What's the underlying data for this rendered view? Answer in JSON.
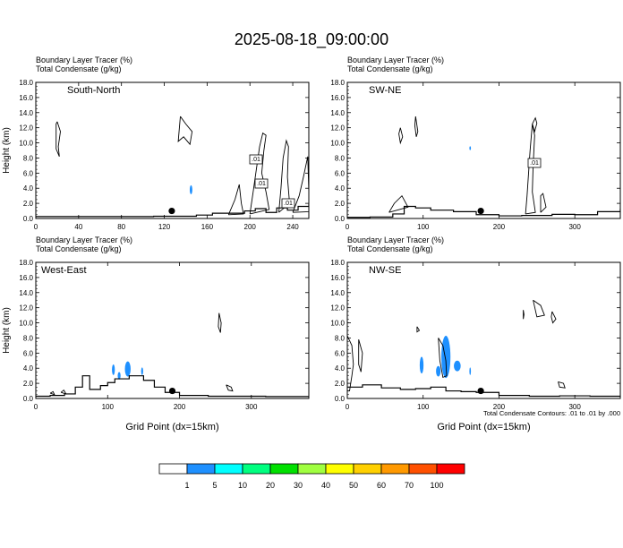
{
  "title": "2025-08-18_09:00:00",
  "chart_data": [
    {
      "type": "cross-section",
      "panel": "South-North",
      "field_labels": [
        "Boundary Layer Tracer    (%)",
        "Total Condensate    (g/kg)"
      ],
      "ylabel": "Height (km)",
      "xlabel": "",
      "ylim": [
        0,
        18
      ],
      "xlim": [
        0,
        255
      ],
      "xticks": [
        0,
        40,
        80,
        120,
        160,
        200,
        240
      ],
      "yticks": [
        "0.0",
        "2.0",
        "4.0",
        "6.0",
        "8.0",
        "10.0",
        "12.0",
        "14.0",
        "16.0",
        "18.0"
      ],
      "contour_labels": [
        ".01",
        ".01",
        ".01"
      ],
      "marker": {
        "x": 127,
        "y": 1.0
      },
      "terrain": [
        [
          0,
          0.25
        ],
        [
          40,
          0.25
        ],
        [
          80,
          0.25
        ],
        [
          110,
          0.3
        ],
        [
          150,
          0.45
        ],
        [
          165,
          0.7
        ],
        [
          180,
          0.7
        ],
        [
          195,
          1.0
        ],
        [
          205,
          1.3
        ],
        [
          215,
          0.8
        ],
        [
          225,
          1.4
        ],
        [
          235,
          1.1
        ],
        [
          245,
          1.6
        ],
        [
          255,
          1.9
        ]
      ],
      "tracer_contours": [
        [
          [
            20,
            12.8
          ],
          [
            23,
            11.5
          ],
          [
            21,
            9.5
          ],
          [
            22,
            8.2
          ],
          [
            19,
            9.2
          ],
          [
            19,
            12.5
          ],
          [
            20,
            12.8
          ]
        ],
        [
          [
            135,
            13.5
          ],
          [
            140,
            12.5
          ],
          [
            146,
            11.5
          ],
          [
            144,
            9.8
          ],
          [
            138,
            10.8
          ],
          [
            133,
            10.2
          ],
          [
            135,
            13.5
          ]
        ],
        [
          [
            200,
            0.6
          ],
          [
            203,
            3.5
          ],
          [
            206,
            6.5
          ],
          [
            209,
            9.5
          ],
          [
            212,
            11.3
          ],
          [
            215,
            11.0
          ],
          [
            213,
            9.0
          ],
          [
            211,
            6.0
          ],
          [
            215,
            3.5
          ],
          [
            218,
            1.2
          ],
          [
            200,
            0.6
          ]
        ],
        [
          [
            227,
            0.8
          ],
          [
            229,
            4.0
          ],
          [
            231,
            8.0
          ],
          [
            234,
            10.3
          ],
          [
            236,
            9.5
          ],
          [
            235,
            5.5
          ],
          [
            237,
            2.0
          ],
          [
            227,
            0.8
          ]
        ],
        [
          [
            180,
            0.5
          ],
          [
            186,
            2.5
          ],
          [
            190,
            4.5
          ],
          [
            192,
            2.0
          ],
          [
            194,
            0.6
          ],
          [
            180,
            0.5
          ]
        ],
        [
          [
            240,
            0.8
          ],
          [
            246,
            3.0
          ],
          [
            250,
            5.5
          ],
          [
            254,
            8.2
          ],
          [
            255,
            3.5
          ],
          [
            255,
            0.9
          ],
          [
            240,
            0.8
          ]
        ]
      ],
      "condensate_blobs": [
        {
          "x": 145,
          "y": 3.8,
          "rx": 1.2,
          "ry": 0.6,
          "value": 1
        }
      ]
    },
    {
      "type": "cross-section",
      "panel": "SW-NE",
      "field_labels": [
        "Boundary Layer Tracer    (%)",
        "Total Condensate    (g/kg)"
      ],
      "ylabel": "",
      "xlabel": "",
      "ylim": [
        0,
        18
      ],
      "xlim": [
        0,
        360
      ],
      "xticks": [
        0,
        100,
        200,
        300
      ],
      "yticks": [
        "0.0",
        "2.0",
        "4.0",
        "6.0",
        "8.0",
        "10.0",
        "12.0",
        "14.0",
        "16.0",
        "18.0"
      ],
      "contour_labels": [
        ".01"
      ],
      "marker": {
        "x": 176,
        "y": 1.0
      },
      "terrain": [
        [
          0,
          0.15
        ],
        [
          30,
          0.2
        ],
        [
          60,
          0.6
        ],
        [
          75,
          1.6
        ],
        [
          90,
          1.4
        ],
        [
          110,
          1.1
        ],
        [
          140,
          0.9
        ],
        [
          170,
          0.5
        ],
        [
          200,
          0.35
        ],
        [
          230,
          0.4
        ],
        [
          270,
          0.55
        ],
        [
          300,
          0.5
        ],
        [
          330,
          0.9
        ],
        [
          360,
          1.3
        ]
      ],
      "tracer_contours": [
        [
          [
            70,
            12.0
          ],
          [
            73,
            10.8
          ],
          [
            70,
            10.0
          ],
          [
            68,
            11.2
          ],
          [
            70,
            12.0
          ]
        ],
        [
          [
            90,
            13.5
          ],
          [
            93,
            11.5
          ],
          [
            91,
            10.8
          ],
          [
            89,
            12.3
          ],
          [
            90,
            13.5
          ]
        ],
        [
          [
            235,
            0.6
          ],
          [
            237,
            3.0
          ],
          [
            239,
            6.0
          ],
          [
            241,
            9.0
          ],
          [
            244,
            12.5
          ],
          [
            247,
            11.0
          ],
          [
            245,
            7.0
          ],
          [
            244,
            3.5
          ],
          [
            248,
            0.8
          ],
          [
            235,
            0.6
          ]
        ],
        [
          [
            244,
            12.5
          ],
          [
            248,
            13.3
          ],
          [
            250,
            12.6
          ],
          [
            247,
            11.5
          ],
          [
            244,
            12.5
          ]
        ],
        [
          [
            255,
            0.8
          ],
          [
            255,
            3.0
          ],
          [
            258,
            3.3
          ],
          [
            262,
            1.5
          ],
          [
            255,
            0.8
          ]
        ],
        [
          [
            55,
            0.8
          ],
          [
            62,
            2.0
          ],
          [
            72,
            3.0
          ],
          [
            80,
            1.5
          ],
          [
            55,
            0.8
          ]
        ]
      ],
      "condensate_blobs": [
        {
          "x": 162,
          "y": 9.3,
          "rx": 1.0,
          "ry": 0.25,
          "value": 1
        }
      ]
    },
    {
      "type": "cross-section",
      "panel": "West-East",
      "field_labels": [
        "Boundary Layer Tracer    (%)",
        "Total Condensate    (g/kg)"
      ],
      "ylabel": "Height (km)",
      "xlabel": "Grid Point  (dx=15km)",
      "ylim": [
        0,
        18
      ],
      "xlim": [
        0,
        380
      ],
      "xticks": [
        0,
        100,
        200,
        300
      ],
      "yticks": [
        "0.0",
        "2.0",
        "4.0",
        "6.0",
        "8.0",
        "10.0",
        "12.0",
        "14.0",
        "16.0",
        "18.0"
      ],
      "contour_labels": [],
      "marker": {
        "x": 190,
        "y": 1.0
      },
      "terrain": [
        [
          0,
          0.3
        ],
        [
          20,
          0.4
        ],
        [
          40,
          0.6
        ],
        [
          55,
          1.5
        ],
        [
          65,
          3.0
        ],
        [
          75,
          1.2
        ],
        [
          90,
          1.7
        ],
        [
          100,
          2.1
        ],
        [
          110,
          2.6
        ],
        [
          130,
          3.0
        ],
        [
          150,
          2.4
        ],
        [
          165,
          1.5
        ],
        [
          180,
          0.8
        ],
        [
          200,
          0.4
        ],
        [
          240,
          0.3
        ],
        [
          280,
          0.3
        ],
        [
          320,
          0.25
        ],
        [
          380,
          0.2
        ]
      ],
      "tracer_contours": [
        [
          [
            255,
            11.3
          ],
          [
            258,
            10.0
          ],
          [
            257,
            8.7
          ],
          [
            254,
            9.5
          ],
          [
            255,
            11.3
          ]
        ],
        [
          [
            265,
            1.8
          ],
          [
            272,
            1.5
          ],
          [
            274,
            1.0
          ],
          [
            268,
            1.1
          ],
          [
            265,
            1.8
          ]
        ],
        [
          [
            20,
            0.7
          ],
          [
            24,
            0.9
          ],
          [
            26,
            0.5
          ],
          [
            20,
            0.7
          ]
        ],
        [
          [
            35,
            0.8
          ],
          [
            39,
            1.1
          ],
          [
            42,
            0.6
          ],
          [
            35,
            0.8
          ]
        ]
      ],
      "condensate_blobs": [
        {
          "x": 128,
          "y": 3.9,
          "rx": 4.0,
          "ry": 1.0,
          "value": 5
        },
        {
          "x": 108,
          "y": 3.8,
          "rx": 2.0,
          "ry": 0.7,
          "value": 1
        },
        {
          "x": 116,
          "y": 3.0,
          "rx": 2.0,
          "ry": 0.5,
          "value": 1
        },
        {
          "x": 148,
          "y": 3.6,
          "rx": 1.4,
          "ry": 0.5,
          "value": 1
        }
      ]
    },
    {
      "type": "cross-section",
      "panel": "NW-SE",
      "field_labels": [
        "Boundary Layer Tracer    (%)",
        "Total Condensate    (g/kg)"
      ],
      "ylabel": "",
      "xlabel": "Grid Point  (dx=15km)",
      "ylim": [
        0,
        18
      ],
      "xlim": [
        0,
        360
      ],
      "xticks": [
        0,
        100,
        200,
        300
      ],
      "yticks": [
        "0.0",
        "2.0",
        "4.0",
        "6.0",
        "8.0",
        "10.0",
        "12.0",
        "14.0",
        "16.0",
        "18.0"
      ],
      "contour_labels": [],
      "footnote": "Total Condensate Contours: .01 to .01 by .000",
      "marker": {
        "x": 176,
        "y": 1.0
      },
      "terrain": [
        [
          0,
          1.5
        ],
        [
          20,
          1.8
        ],
        [
          45,
          1.4
        ],
        [
          70,
          1.2
        ],
        [
          90,
          1.3
        ],
        [
          110,
          1.5
        ],
        [
          130,
          1.0
        ],
        [
          150,
          0.9
        ],
        [
          170,
          0.8
        ],
        [
          200,
          0.4
        ],
        [
          240,
          0.3
        ],
        [
          280,
          0.35
        ],
        [
          320,
          0.3
        ],
        [
          360,
          0.25
        ]
      ],
      "tracer_contours": [
        [
          [
            0,
            8.3
          ],
          [
            6,
            7.0
          ],
          [
            8,
            4.5
          ],
          [
            6,
            3.0
          ],
          [
            3,
            1.0
          ],
          [
            0,
            1.0
          ]
        ],
        [
          [
            15,
            7.8
          ],
          [
            20,
            6.0
          ],
          [
            18,
            3.5
          ],
          [
            15,
            4.5
          ],
          [
            15,
            7.8
          ]
        ],
        [
          [
            120,
            8.0
          ],
          [
            126,
            7.0
          ],
          [
            130,
            5.0
          ],
          [
            131,
            3.0
          ],
          [
            126,
            2.8
          ],
          [
            122,
            5.0
          ],
          [
            120,
            8.0
          ]
        ],
        [
          [
            245,
            13.0
          ],
          [
            255,
            12.3
          ],
          [
            260,
            11.0
          ],
          [
            250,
            10.8
          ],
          [
            245,
            13.0
          ]
        ],
        [
          [
            270,
            11.5
          ],
          [
            275,
            10.5
          ],
          [
            271,
            10.0
          ],
          [
            269,
            10.8
          ],
          [
            270,
            11.5
          ]
        ],
        [
          [
            92,
            9.5
          ],
          [
            95,
            9.0
          ],
          [
            92,
            8.8
          ],
          [
            92,
            9.5
          ]
        ],
        [
          [
            278,
            2.2
          ],
          [
            285,
            2.0
          ],
          [
            287,
            1.4
          ],
          [
            280,
            1.5
          ],
          [
            278,
            2.2
          ]
        ],
        [
          [
            232,
            11.7
          ],
          [
            233,
            11.1
          ],
          [
            232,
            10.5
          ],
          [
            232,
            11.7
          ]
        ]
      ],
      "condensate_blobs": [
        {
          "x": 130,
          "y": 5.5,
          "rx": 6.0,
          "ry": 2.8,
          "value": 5
        },
        {
          "x": 98,
          "y": 4.4,
          "rx": 2.5,
          "ry": 1.1,
          "value": 1
        },
        {
          "x": 120,
          "y": 3.6,
          "rx": 3.0,
          "ry": 0.7,
          "value": 1
        },
        {
          "x": 145,
          "y": 4.3,
          "rx": 4.5,
          "ry": 0.7,
          "value": 1
        },
        {
          "x": 162,
          "y": 3.6,
          "rx": 1.0,
          "ry": 0.5,
          "value": 1
        }
      ]
    }
  ],
  "colorbar": {
    "labels": [
      "1",
      "5",
      "10",
      "20",
      "30",
      "40",
      "50",
      "60",
      "70",
      "100"
    ],
    "colors": [
      "#ffffff",
      "#1e90ff",
      "#00ffff",
      "#00ff80",
      "#00e000",
      "#a0ff40",
      "#ffff00",
      "#ffd000",
      "#ff9900",
      "#ff5000",
      "#ff0000"
    ]
  }
}
